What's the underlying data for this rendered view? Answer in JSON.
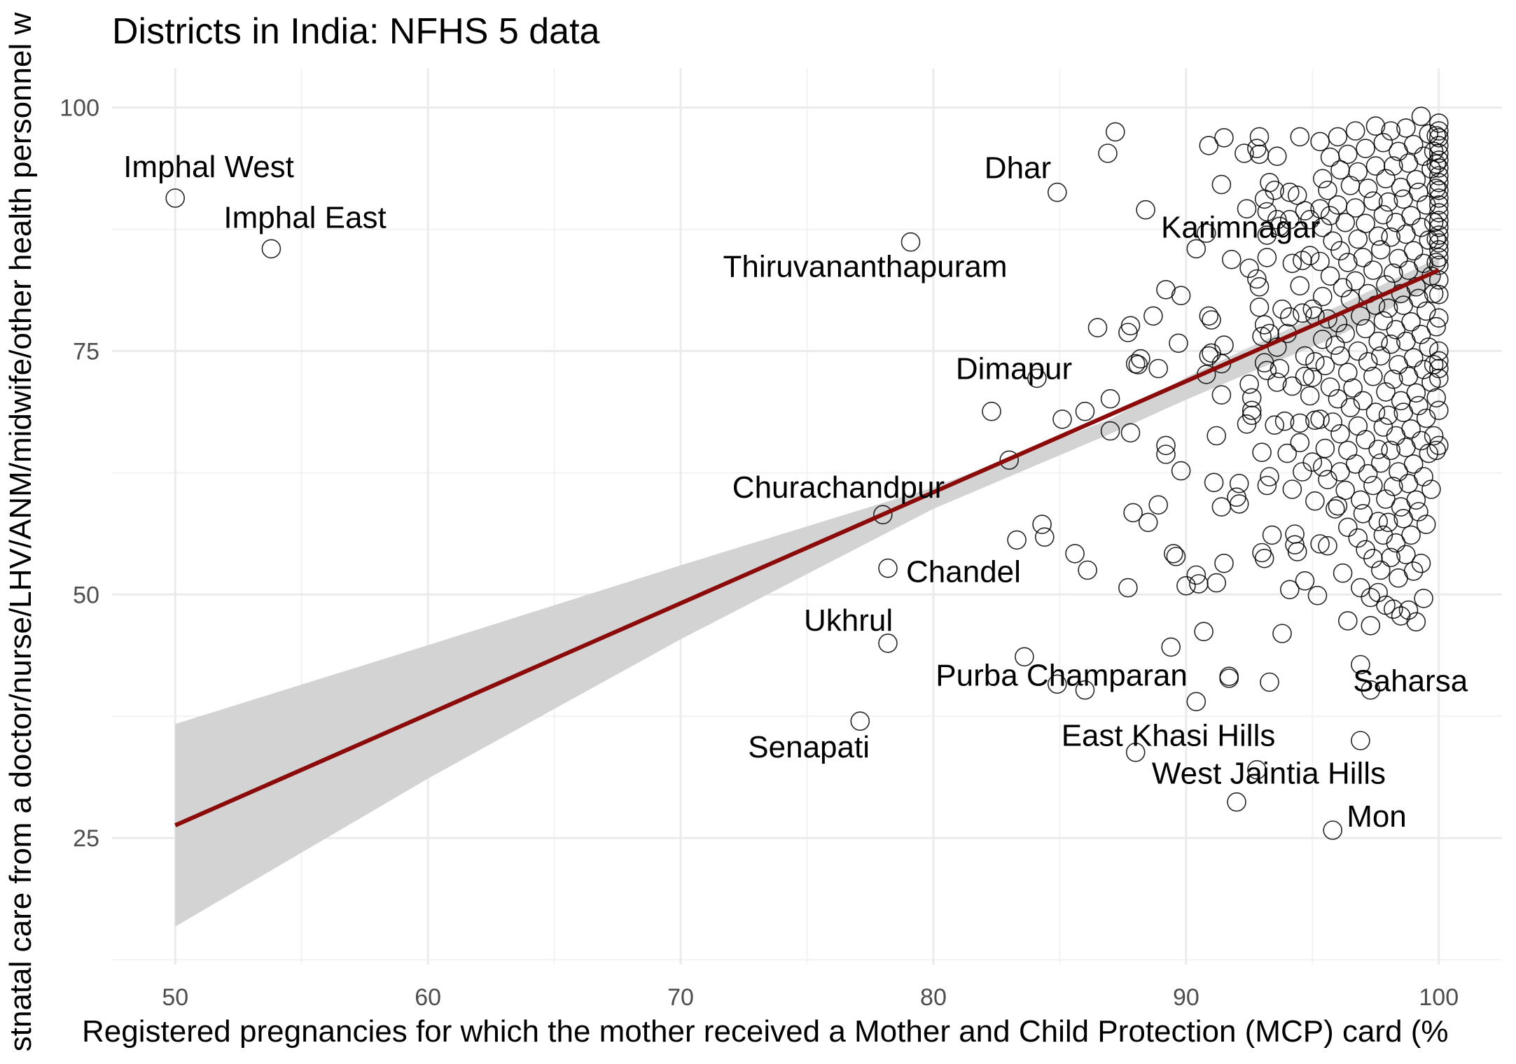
{
  "chart_data": {
    "type": "scatter",
    "title": "Districts in India: NFHS 5 data",
    "xlabel": "Registered pregnancies for which the mother received a Mother and Child Protection (MCP) card (%",
    "ylabel": "stnatal care from a doctor/nurse/LHV/ANM/midwife/other health personnel w",
    "xlim": [
      47.5,
      102.5
    ],
    "ylim": [
      12,
      104
    ],
    "x_ticks": [
      "50",
      "60",
      "70",
      "80",
      "90",
      "100"
    ],
    "y_ticks": [
      "25",
      "50",
      "75",
      "100"
    ],
    "grid": true,
    "colors": {
      "point": "#000000",
      "fit_line": "#8b0a0a",
      "confidence_band": "#d3d3d3",
      "grid": "#ebebeb"
    },
    "fit_line": {
      "x": [
        50,
        100
      ],
      "y": [
        26.3,
        83.3
      ]
    },
    "confidence_band": {
      "x": [
        50,
        60,
        70,
        80,
        87,
        90,
        93,
        96,
        100
      ],
      "upper": [
        36.7,
        44.8,
        53.0,
        61.0,
        68.0,
        72.3,
        76.0,
        79.6,
        84.6
      ],
      "lower": [
        15.9,
        31.1,
        45.4,
        58.8,
        66.5,
        70.0,
        73.3,
        76.5,
        82.0
      ]
    },
    "labeled_points": [
      {
        "label": "Imphal West",
        "x": 50.0,
        "y": 90.7
      },
      {
        "label": "Imphal East",
        "x": 53.8,
        "y": 85.5
      },
      {
        "label": "Thiruvananthapuram",
        "x": 79.1,
        "y": 86.2
      },
      {
        "label": "Dhar",
        "x": 84.9,
        "y": 91.3
      },
      {
        "label": "Karimnagar",
        "x": 92.0,
        "y": 87.3
      },
      {
        "label": "Dimapur",
        "x": 84.1,
        "y": 72.2
      },
      {
        "label": "Churachandpur",
        "x": 78.0,
        "y": 58.2
      },
      {
        "label": "Chandel",
        "x": 78.2,
        "y": 52.7
      },
      {
        "label": "Ukhrul",
        "x": 78.2,
        "y": 45.0
      },
      {
        "label": "Purba Champaran",
        "x": 90.4,
        "y": 39.0
      },
      {
        "label": "Saharsa",
        "x": 97.3,
        "y": 40.2
      },
      {
        "label": "Senapati",
        "x": 77.1,
        "y": 37.0
      },
      {
        "label": "East Khasi Hills",
        "x": 88.0,
        "y": 33.8
      },
      {
        "label": "West Jaintia Hills",
        "x": 92.8,
        "y": 32.0
      },
      {
        "label": "Mon",
        "x": 95.8,
        "y": 25.8
      }
    ],
    "points": [
      [
        50.0,
        90.7
      ],
      [
        53.8,
        85.5
      ],
      [
        79.1,
        86.2
      ],
      [
        84.9,
        91.3
      ],
      [
        84.1,
        72.2
      ],
      [
        78.0,
        58.2
      ],
      [
        78.2,
        52.7
      ],
      [
        78.2,
        45.0
      ],
      [
        77.1,
        37.0
      ],
      [
        95.8,
        25.8
      ],
      [
        90.4,
        39.0
      ],
      [
        97.3,
        40.2
      ],
      [
        88.0,
        33.8
      ],
      [
        92.8,
        32.0
      ],
      [
        82.3,
        68.8
      ],
      [
        83.0,
        63.8
      ],
      [
        83.3,
        55.6
      ],
      [
        84.3,
        57.2
      ],
      [
        84.4,
        55.9
      ],
      [
        85.1,
        68.0
      ],
      [
        86.0,
        68.8
      ],
      [
        85.6,
        54.2
      ],
      [
        86.1,
        52.5
      ],
      [
        83.6,
        43.6
      ],
      [
        84.9,
        40.8
      ],
      [
        86.0,
        40.2
      ],
      [
        86.5,
        77.4
      ],
      [
        86.9,
        95.3
      ],
      [
        87.2,
        97.5
      ],
      [
        87.0,
        70.1
      ],
      [
        87.0,
        66.8
      ],
      [
        87.7,
        76.9
      ],
      [
        87.8,
        77.6
      ],
      [
        87.8,
        66.6
      ],
      [
        87.9,
        58.4
      ],
      [
        87.7,
        50.7
      ],
      [
        88.1,
        73.6
      ],
      [
        88.0,
        73.7
      ],
      [
        88.2,
        74.2
      ],
      [
        88.4,
        89.5
      ],
      [
        88.5,
        57.4
      ],
      [
        88.7,
        78.6
      ],
      [
        88.9,
        73.2
      ],
      [
        88.9,
        59.2
      ],
      [
        89.2,
        81.3
      ],
      [
        89.2,
        65.3
      ],
      [
        89.2,
        64.4
      ],
      [
        89.5,
        54.2
      ],
      [
        89.6,
        53.9
      ],
      [
        89.4,
        44.6
      ],
      [
        89.7,
        75.8
      ],
      [
        89.8,
        80.7
      ],
      [
        89.8,
        62.7
      ],
      [
        90.0,
        50.9
      ],
      [
        90.4,
        85.5
      ],
      [
        90.5,
        51.1
      ],
      [
        90.4,
        52.0
      ],
      [
        90.7,
        46.2
      ],
      [
        90.8,
        87.1
      ],
      [
        90.9,
        96.1
      ],
      [
        90.8,
        72.6
      ],
      [
        90.9,
        78.6
      ],
      [
        91.0,
        78.2
      ],
      [
        90.9,
        74.5
      ],
      [
        91.0,
        74.8
      ],
      [
        91.1,
        61.5
      ],
      [
        91.2,
        66.3
      ],
      [
        91.2,
        51.2
      ],
      [
        91.5,
        96.9
      ],
      [
        91.4,
        92.1
      ],
      [
        91.4,
        73.7
      ],
      [
        91.5,
        75.6
      ],
      [
        91.4,
        70.5
      ],
      [
        91.4,
        59.0
      ],
      [
        91.5,
        53.2
      ],
      [
        91.8,
        84.4
      ],
      [
        91.7,
        41.4
      ],
      [
        91.7,
        41.6
      ],
      [
        92.0,
        60.0
      ],
      [
        92.1,
        61.4
      ],
      [
        92.1,
        59.3
      ],
      [
        92.0,
        28.7
      ],
      [
        92.3,
        95.3
      ],
      [
        92.4,
        89.6
      ],
      [
        92.5,
        83.5
      ],
      [
        92.5,
        71.6
      ],
      [
        92.6,
        70.2
      ],
      [
        92.4,
        67.5
      ],
      [
        92.6,
        68.4
      ],
      [
        92.6,
        68.9
      ],
      [
        92.9,
        95.2
      ],
      [
        92.8,
        95.8
      ],
      [
        92.9,
        97.0
      ],
      [
        92.8,
        82.4
      ],
      [
        92.9,
        81.6
      ],
      [
        92.9,
        79.5
      ],
      [
        93.1,
        90.6
      ],
      [
        93.2,
        89.3
      ],
      [
        93.3,
        92.3
      ],
      [
        93.2,
        86.9
      ],
      [
        93.2,
        84.6
      ],
      [
        93.1,
        77.7
      ],
      [
        93.0,
        76.5
      ],
      [
        93.3,
        76.8
      ],
      [
        93.1,
        73.8
      ],
      [
        93.2,
        73.0
      ],
      [
        93.0,
        64.6
      ],
      [
        93.3,
        62.1
      ],
      [
        93.2,
        61.2
      ],
      [
        93.1,
        53.7
      ],
      [
        93.0,
        54.3
      ],
      [
        93.4,
        56.1
      ],
      [
        93.3,
        41.0
      ],
      [
        93.6,
        95.0
      ],
      [
        93.5,
        91.5
      ],
      [
        93.6,
        88.5
      ],
      [
        93.7,
        87.8
      ],
      [
        93.8,
        79.3
      ],
      [
        93.6,
        75.4
      ],
      [
        93.7,
        73.2
      ],
      [
        93.6,
        71.8
      ],
      [
        93.9,
        67.8
      ],
      [
        93.5,
        67.4
      ],
      [
        93.8,
        46.0
      ],
      [
        94.1,
        91.3
      ],
      [
        94.1,
        88.5
      ],
      [
        94.2,
        84.0
      ],
      [
        94.1,
        78.5
      ],
      [
        94.0,
        76.8
      ],
      [
        94.2,
        71.4
      ],
      [
        94.0,
        64.5
      ],
      [
        94.2,
        60.8
      ],
      [
        94.3,
        56.2
      ],
      [
        94.3,
        55.1
      ],
      [
        94.4,
        54.4
      ],
      [
        94.1,
        50.5
      ],
      [
        94.5,
        97.0
      ],
      [
        94.4,
        91.0
      ],
      [
        94.7,
        89.4
      ],
      [
        94.6,
        84.3
      ],
      [
        94.5,
        81.7
      ],
      [
        94.6,
        78.9
      ],
      [
        94.7,
        74.5
      ],
      [
        94.7,
        72.4
      ],
      [
        94.5,
        67.6
      ],
      [
        94.5,
        65.6
      ],
      [
        94.6,
        62.6
      ],
      [
        94.7,
        51.4
      ],
      [
        94.9,
        88.5
      ],
      [
        94.9,
        84.8
      ],
      [
        95.0,
        79.3
      ],
      [
        95.1,
        78.6
      ],
      [
        95.1,
        73.9
      ],
      [
        95.0,
        72.3
      ],
      [
        94.9,
        70.4
      ],
      [
        95.1,
        67.9
      ],
      [
        95.0,
        63.6
      ],
      [
        95.1,
        59.6
      ],
      [
        95.3,
        96.5
      ],
      [
        95.4,
        92.7
      ],
      [
        95.3,
        89.6
      ],
      [
        95.4,
        87.7
      ],
      [
        95.3,
        84.2
      ],
      [
        95.4,
        80.6
      ],
      [
        95.4,
        76.2
      ],
      [
        95.5,
        73.5
      ],
      [
        95.3,
        68.0
      ],
      [
        95.5,
        65.0
      ],
      [
        95.4,
        63.1
      ],
      [
        95.3,
        55.2
      ],
      [
        95.2,
        49.9
      ],
      [
        95.7,
        94.9
      ],
      [
        95.6,
        91.5
      ],
      [
        95.7,
        88.9
      ],
      [
        95.8,
        86.3
      ],
      [
        95.7,
        82.7
      ],
      [
        95.6,
        78.3
      ],
      [
        95.9,
        75.6
      ],
      [
        95.7,
        71.3
      ],
      [
        95.8,
        67.7
      ],
      [
        95.6,
        61.8
      ],
      [
        95.9,
        58.8
      ],
      [
        95.6,
        55.0
      ],
      [
        96.0,
        97.0
      ],
      [
        96.1,
        93.6
      ],
      [
        96.0,
        90.0
      ],
      [
        96.1,
        85.3
      ],
      [
        96.2,
        81.5
      ],
      [
        96.0,
        77.9
      ],
      [
        96.1,
        74.5
      ],
      [
        96.0,
        70.1
      ],
      [
        96.1,
        66.5
      ],
      [
        96.1,
        62.6
      ],
      [
        96.0,
        59.1
      ],
      [
        96.2,
        52.2
      ],
      [
        96.4,
        95.2
      ],
      [
        96.5,
        92.0
      ],
      [
        96.3,
        88.2
      ],
      [
        96.4,
        84.1
      ],
      [
        96.5,
        80.3
      ],
      [
        96.3,
        76.8
      ],
      [
        96.4,
        72.8
      ],
      [
        96.5,
        69.2
      ],
      [
        96.4,
        64.8
      ],
      [
        96.3,
        60.7
      ],
      [
        96.4,
        56.9
      ],
      [
        96.4,
        47.3
      ],
      [
        96.7,
        97.6
      ],
      [
        96.8,
        93.4
      ],
      [
        96.7,
        89.7
      ],
      [
        96.8,
        86.5
      ],
      [
        96.7,
        82.2
      ],
      [
        96.9,
        78.6
      ],
      [
        96.8,
        75.0
      ],
      [
        96.6,
        71.2
      ],
      [
        96.8,
        67.3
      ],
      [
        96.7,
        63.4
      ],
      [
        96.9,
        59.7
      ],
      [
        96.8,
        55.8
      ],
      [
        96.9,
        50.7
      ],
      [
        96.9,
        42.8
      ],
      [
        96.9,
        35.0
      ],
      [
        97.1,
        95.8
      ],
      [
        97.2,
        91.7
      ],
      [
        97.1,
        88.1
      ],
      [
        97.0,
        84.6
      ],
      [
        97.2,
        80.9
      ],
      [
        97.1,
        77.3
      ],
      [
        97.2,
        73.9
      ],
      [
        97.0,
        69.9
      ],
      [
        97.1,
        65.9
      ],
      [
        97.2,
        62.4
      ],
      [
        97.0,
        58.3
      ],
      [
        97.1,
        54.6
      ],
      [
        97.3,
        49.7
      ],
      [
        97.3,
        46.8
      ],
      [
        97.5,
        98.1
      ],
      [
        97.5,
        94.0
      ],
      [
        97.4,
        90.4
      ],
      [
        97.6,
        86.8
      ],
      [
        97.4,
        83.3
      ],
      [
        97.5,
        79.7
      ],
      [
        97.6,
        76.0
      ],
      [
        97.4,
        72.4
      ],
      [
        97.5,
        68.7
      ],
      [
        97.6,
        64.9
      ],
      [
        97.4,
        61.2
      ],
      [
        97.6,
        57.5
      ],
      [
        97.4,
        53.7
      ],
      [
        97.6,
        50.2
      ],
      [
        97.8,
        96.4
      ],
      [
        97.9,
        92.7
      ],
      [
        97.8,
        89.0
      ],
      [
        97.7,
        85.4
      ],
      [
        97.9,
        81.8
      ],
      [
        97.8,
        78.1
      ],
      [
        97.7,
        74.5
      ],
      [
        97.9,
        70.8
      ],
      [
        97.8,
        67.2
      ],
      [
        97.7,
        63.5
      ],
      [
        97.9,
        59.8
      ],
      [
        97.8,
        56.1
      ],
      [
        97.7,
        52.5
      ],
      [
        97.9,
        48.9
      ],
      [
        98.1,
        97.6
      ],
      [
        98.2,
        94.0
      ],
      [
        98.0,
        90.3
      ],
      [
        98.1,
        86.7
      ],
      [
        98.2,
        83.0
      ],
      [
        98.0,
        79.4
      ],
      [
        98.1,
        75.7
      ],
      [
        98.2,
        72.1
      ],
      [
        98.0,
        68.4
      ],
      [
        98.1,
        64.8
      ],
      [
        98.2,
        61.1
      ],
      [
        98.0,
        57.4
      ],
      [
        98.1,
        53.8
      ],
      [
        98.2,
        48.5
      ],
      [
        98.4,
        95.5
      ],
      [
        98.5,
        91.8
      ],
      [
        98.3,
        88.2
      ],
      [
        98.4,
        84.5
      ],
      [
        98.5,
        80.9
      ],
      [
        98.3,
        77.2
      ],
      [
        98.4,
        73.6
      ],
      [
        98.5,
        69.9
      ],
      [
        98.3,
        66.3
      ],
      [
        98.4,
        62.6
      ],
      [
        98.5,
        59.0
      ],
      [
        98.3,
        55.3
      ],
      [
        98.4,
        51.7
      ],
      [
        98.5,
        47.8
      ],
      [
        98.7,
        97.9
      ],
      [
        98.8,
        94.3
      ],
      [
        98.6,
        90.6
      ],
      [
        98.7,
        87.0
      ],
      [
        98.8,
        83.3
      ],
      [
        98.6,
        79.7
      ],
      [
        98.7,
        76.0
      ],
      [
        98.8,
        72.4
      ],
      [
        98.6,
        68.7
      ],
      [
        98.7,
        65.1
      ],
      [
        98.8,
        61.4
      ],
      [
        98.6,
        57.8
      ],
      [
        98.7,
        54.1
      ],
      [
        98.8,
        48.4
      ],
      [
        99.0,
        96.2
      ],
      [
        99.1,
        92.6
      ],
      [
        98.9,
        88.9
      ],
      [
        99.0,
        85.3
      ],
      [
        99.1,
        81.6
      ],
      [
        98.9,
        78.0
      ],
      [
        99.0,
        74.3
      ],
      [
        99.1,
        70.7
      ],
      [
        98.9,
        67.0
      ],
      [
        99.0,
        63.4
      ],
      [
        99.1,
        59.7
      ],
      [
        98.9,
        56.1
      ],
      [
        99.0,
        52.4
      ],
      [
        99.1,
        47.2
      ],
      [
        99.3,
        99.1
      ],
      [
        99.4,
        95.0
      ],
      [
        99.2,
        91.3
      ],
      [
        99.3,
        87.7
      ],
      [
        99.4,
        84.0
      ],
      [
        99.2,
        80.4
      ],
      [
        99.3,
        76.7
      ],
      [
        99.4,
        73.1
      ],
      [
        99.2,
        69.4
      ],
      [
        99.3,
        65.8
      ],
      [
        99.4,
        62.1
      ],
      [
        99.2,
        58.5
      ],
      [
        99.3,
        53.2
      ],
      [
        99.4,
        49.6
      ],
      [
        99.6,
        97.3
      ],
      [
        99.7,
        93.7
      ],
      [
        99.5,
        90.0
      ],
      [
        99.6,
        86.4
      ],
      [
        99.7,
        82.7
      ],
      [
        99.5,
        79.1
      ],
      [
        99.6,
        75.4
      ],
      [
        99.7,
        71.8
      ],
      [
        99.5,
        68.1
      ],
      [
        99.6,
        64.5
      ],
      [
        99.7,
        60.8
      ],
      [
        99.5,
        57.2
      ],
      [
        99.8,
        95.5
      ],
      [
        99.8,
        88.2
      ],
      [
        99.8,
        80.9
      ],
      [
        99.8,
        73.6
      ],
      [
        99.8,
        66.3
      ],
      [
        100.0,
        98.4
      ],
      [
        100.0,
        97.6
      ],
      [
        100.0,
        96.9
      ],
      [
        100.0,
        96.1
      ],
      [
        100.0,
        95.3
      ],
      [
        100.0,
        94.6
      ],
      [
        100.0,
        93.8
      ],
      [
        100.0,
        93.0
      ],
      [
        100.0,
        92.3
      ],
      [
        100.0,
        91.5
      ],
      [
        100.0,
        90.7
      ],
      [
        100.0,
        90.0
      ],
      [
        100.0,
        89.2
      ],
      [
        100.0,
        88.4
      ],
      [
        100.0,
        87.7
      ],
      [
        100.0,
        86.9
      ],
      [
        100.0,
        86.1
      ],
      [
        100.0,
        85.4
      ],
      [
        100.0,
        84.6
      ],
      [
        100.0,
        83.8
      ],
      [
        100.0,
        82.3
      ],
      [
        100.0,
        80.8
      ],
      [
        100.0,
        78.4
      ],
      [
        100.0,
        75.0
      ],
      [
        100.0,
        74.0
      ],
      [
        100.0,
        73.2
      ],
      [
        100.0,
        72.2
      ],
      [
        100.0,
        68.9
      ],
      [
        100.0,
        65.3
      ],
      [
        99.9,
        97.1
      ],
      [
        99.9,
        94.2
      ],
      [
        99.9,
        91.7
      ],
      [
        99.9,
        86.5
      ],
      [
        99.9,
        84.1
      ],
      [
        99.9,
        77.5
      ],
      [
        99.9,
        70.2
      ],
      [
        99.9,
        64.8
      ]
    ]
  }
}
